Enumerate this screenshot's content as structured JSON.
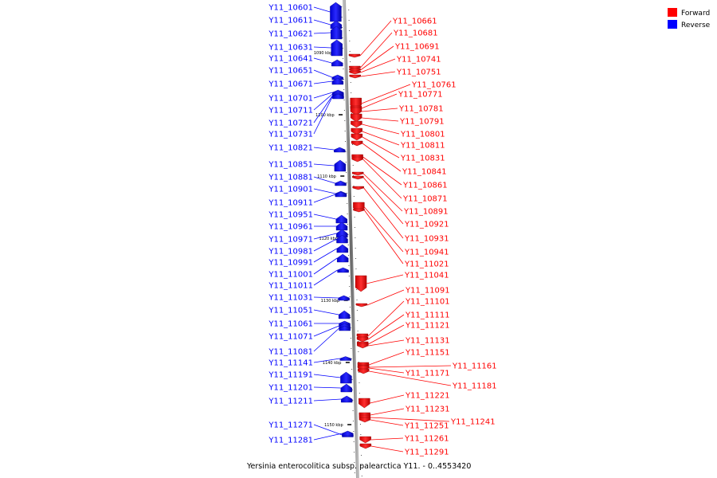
{
  "legend": [
    {
      "label": "Forward",
      "color": "#ff0000"
    },
    {
      "label": "Reverse",
      "color": "#0000ff"
    }
  ],
  "caption": "Yersinia enterocolitica subsp. palearctica Y11. - 0..4553420",
  "ticks": [
    "1090 kbp",
    "1100 kbp",
    "1110 kbp",
    "1120 kbp",
    "1130 kbp",
    "1140 kbp",
    "1150 kbp"
  ],
  "reverse_genes": [
    "Y11_10601",
    "Y11_10611",
    "Y11_10621",
    "Y11_10631",
    "Y11_10641",
    "Y11_10651",
    "Y11_10671",
    "Y11_10701",
    "Y11_10711",
    "Y11_10721",
    "Y11_10731",
    "Y11_10821",
    "Y11_10851",
    "Y11_10881",
    "Y11_10901",
    "Y11_10911",
    "Y11_10951",
    "Y11_10961",
    "Y11_10971",
    "Y11_10981",
    "Y11_10991",
    "Y11_11001",
    "Y11_11011",
    "Y11_11031",
    "Y11_11051",
    "Y11_11061",
    "Y11_11071",
    "Y11_11081",
    "Y11_11141",
    "Y11_11191",
    "Y11_11201",
    "Y11_11211",
    "Y11_11271",
    "Y11_11281"
  ],
  "forward_genes": [
    "Y11_10661",
    "Y11_10681",
    "Y11_10691",
    "Y11_10741",
    "Y11_10751",
    "Y11_10761",
    "Y11_10771",
    "Y11_10781",
    "Y11_10791",
    "Y11_10801",
    "Y11_10811",
    "Y11_10831",
    "Y11_10841",
    "Y11_10861",
    "Y11_10871",
    "Y11_10891",
    "Y11_10921",
    "Y11_10931",
    "Y11_10941",
    "Y11_11021",
    "Y11_11041",
    "Y11_11091",
    "Y11_11101",
    "Y11_11111",
    "Y11_11121",
    "Y11_11131",
    "Y11_11151",
    "Y11_11161",
    "Y11_11171",
    "Y11_11181",
    "Y11_11221",
    "Y11_11231",
    "Y11_11241",
    "Y11_11251",
    "Y11_11261",
    "Y11_11291"
  ]
}
